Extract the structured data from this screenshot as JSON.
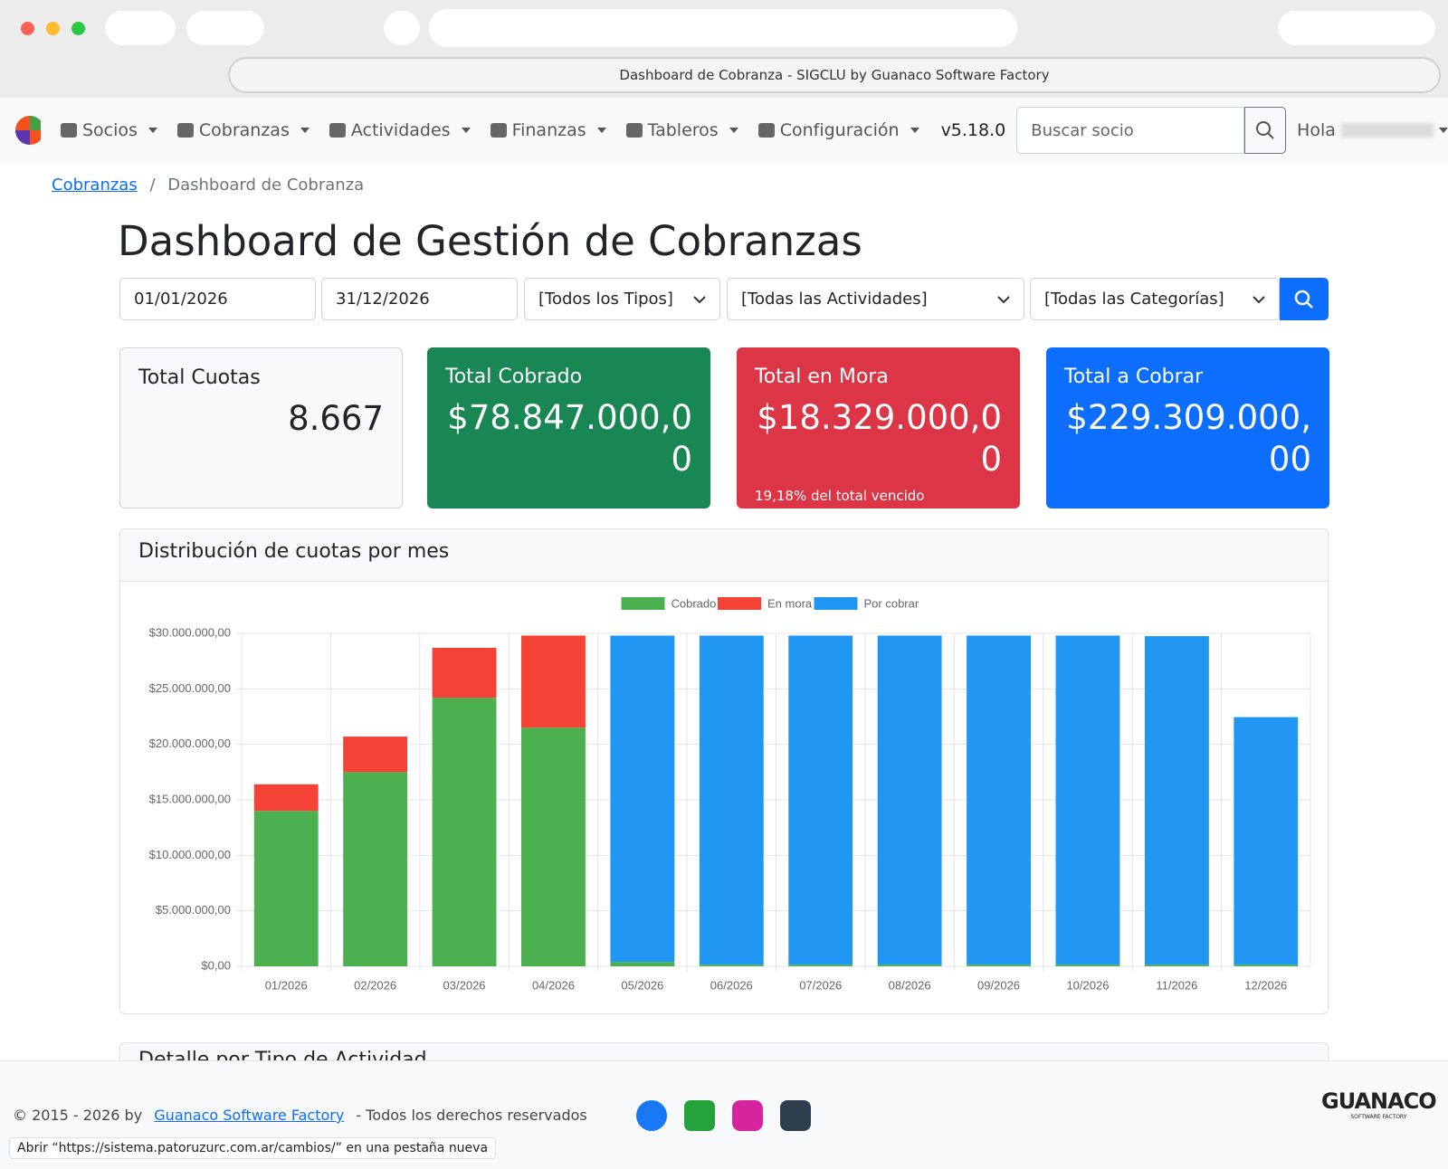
{
  "browser": {
    "tab_title": "Dashboard de Cobranza - SIGCLU by Guanaco Software Factory"
  },
  "nav": {
    "items": [
      "Socios",
      "Cobranzas",
      "Actividades",
      "Finanzas",
      "Tableros",
      "Configuración"
    ],
    "version": "v5.18.0",
    "search_placeholder": "Buscar socio",
    "greeting": "Hola"
  },
  "breadcrumb": [
    "Cobranzas",
    "Dashboard de Cobranza"
  ],
  "page_title": "Dashboard de Gestión de Cobranzas",
  "filters": {
    "date_from": "01/01/2026",
    "date_to": "31/12/2026",
    "selects": [
      "[Todos los Tipos]",
      "[Todas las Actividades]",
      "[Todas las Categorías]"
    ]
  },
  "cards": [
    {
      "title": "Total Cuotas",
      "value": "8.667"
    },
    {
      "title": "Total Cobrado",
      "value": "$78.847.000,00"
    },
    {
      "title": "Total en Mora",
      "value": "$18.329.000,00",
      "note": "19,18% del total vencido"
    },
    {
      "title": "Total a Cobrar",
      "value": "$229.309.000,00"
    }
  ],
  "chart_card_title": "Distribución de cuotas por mes",
  "next_card_title": "Detalle por Tipo de Actividad",
  "chart_data": {
    "type": "bar",
    "stacked": true,
    "legend": "top",
    "grid": true,
    "categories": [
      "01/2026",
      "02/2026",
      "03/2026",
      "04/2026",
      "05/2026",
      "06/2026",
      "07/2026",
      "08/2026",
      "09/2026",
      "10/2026",
      "11/2026",
      "12/2026"
    ],
    "series": [
      {
        "name": "Cobrado",
        "color": "#4caf50",
        "values": [
          14000000,
          17500000,
          24200000,
          21500000,
          400000,
          150000,
          150000,
          150000,
          150000,
          150000,
          150000,
          150000
        ]
      },
      {
        "name": "En mora",
        "color": "#f44336",
        "values": [
          2400000,
          3200000,
          4500000,
          8300000,
          0,
          0,
          0,
          0,
          0,
          0,
          0,
          0
        ]
      },
      {
        "name": "Por cobrar",
        "color": "#2196f3",
        "values": [
          0,
          0,
          0,
          0,
          29400000,
          29650000,
          29650000,
          29650000,
          29650000,
          29650000,
          29600000,
          22300000
        ]
      }
    ],
    "ylim": [
      0,
      30000000
    ],
    "yticks": [
      {
        "value": 0,
        "label": "$0,00"
      },
      {
        "value": 5000000,
        "label": "$5.000.000,00"
      },
      {
        "value": 10000000,
        "label": "$10.000.000,00"
      },
      {
        "value": 15000000,
        "label": "$15.000.000,00"
      },
      {
        "value": 20000000,
        "label": "$20.000.000,00"
      },
      {
        "value": 25000000,
        "label": "$25.000.000,00"
      },
      {
        "value": 30000000,
        "label": "$30.000.000,00"
      }
    ]
  },
  "footer": {
    "copyright": "© 2015 - 2026 by",
    "link": "Guanaco Software Factory",
    "rights": "- Todos los derechos reservados",
    "status": "Abrir “https://sistema.patoruzurc.com.ar/cambios/” en una pestaña nueva",
    "logo": "GUANACO",
    "logo_sub": "SOFTWARE FACTORY"
  }
}
